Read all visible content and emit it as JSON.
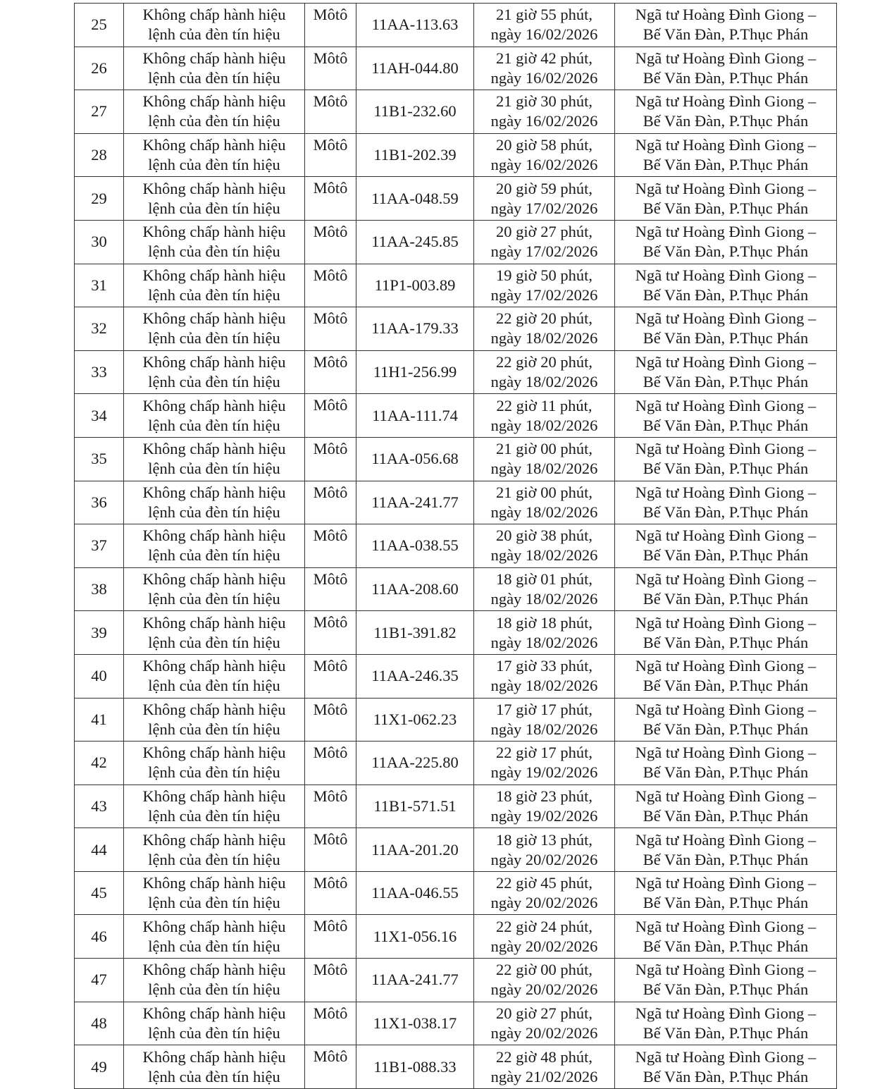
{
  "table": {
    "rows": [
      {
        "stt": "25",
        "violation": [
          "Không chấp hành hiệu",
          "lệnh của đèn tín hiệu"
        ],
        "type": "Môtô",
        "plate": "11AA-113.63",
        "time": [
          "21 giờ 55 phút,",
          "ngày 16/02/2026"
        ],
        "location": [
          "Ngã tư Hoàng Đình Giong –",
          "Bế Văn Đàn, P.Thục Phán"
        ]
      },
      {
        "stt": "26",
        "violation": [
          "Không chấp hành hiệu",
          "lệnh của đèn tín hiệu"
        ],
        "type": "Môtô",
        "plate": "11AH-044.80",
        "time": [
          "21 giờ 42 phút,",
          "ngày 16/02/2026"
        ],
        "location": [
          "Ngã tư Hoàng Đình Giong –",
          "Bế Văn Đàn, P.Thục Phán"
        ]
      },
      {
        "stt": "27",
        "violation": [
          "Không chấp hành hiệu",
          "lệnh của đèn tín hiệu"
        ],
        "type": "Môtô",
        "plate": "11B1-232.60",
        "time": [
          "21 giờ 30 phút,",
          "ngày 16/02/2026"
        ],
        "location": [
          "Ngã tư Hoàng Đình Giong –",
          "Bế Văn Đàn, P.Thục Phán"
        ]
      },
      {
        "stt": "28",
        "violation": [
          "Không chấp hành hiệu",
          "lệnh của đèn tín hiệu"
        ],
        "type": "Môtô",
        "plate": "11B1-202.39",
        "time": [
          "20 giờ 58 phút,",
          "ngày 16/02/2026"
        ],
        "location": [
          "Ngã tư Hoàng Đình Giong –",
          "Bế Văn Đàn, P.Thục Phán"
        ]
      },
      {
        "stt": "29",
        "violation": [
          "Không chấp hành hiệu",
          "lệnh của đèn tín hiệu"
        ],
        "type": "Môtô",
        "plate": "11AA-048.59",
        "time": [
          "20 giờ 59 phút,",
          "ngày 17/02/2026"
        ],
        "location": [
          "Ngã tư Hoàng Đình Giong –",
          "Bế Văn Đàn, P.Thục Phán"
        ]
      },
      {
        "stt": "30",
        "violation": [
          "Không chấp hành hiệu",
          "lệnh của đèn tín hiệu"
        ],
        "type": "Môtô",
        "plate": "11AA-245.85",
        "time": [
          "20 giờ 27 phút,",
          "ngày 17/02/2026"
        ],
        "location": [
          "Ngã tư Hoàng Đình Giong –",
          "Bế Văn Đàn, P.Thục Phán"
        ]
      },
      {
        "stt": "31",
        "violation": [
          "Không chấp hành hiệu",
          "lệnh của đèn tín hiệu"
        ],
        "type": "Môtô",
        "plate": "11P1-003.89",
        "time": [
          "19 giờ 50 phút,",
          "ngày 17/02/2026"
        ],
        "location": [
          "Ngã tư Hoàng Đình Giong –",
          "Bế Văn Đàn, P.Thục Phán"
        ]
      },
      {
        "stt": "32",
        "violation": [
          "Không chấp hành hiệu",
          "lệnh của đèn tín hiệu"
        ],
        "type": "Môtô",
        "plate": "11AA-179.33",
        "time": [
          "22 giờ 20 phút,",
          "ngày 18/02/2026"
        ],
        "location": [
          "Ngã tư Hoàng Đình Giong –",
          "Bế Văn Đàn, P.Thục Phán"
        ]
      },
      {
        "stt": "33",
        "violation": [
          "Không chấp hành hiệu",
          "lệnh của đèn tín hiệu"
        ],
        "type": "Môtô",
        "plate": "11H1-256.99",
        "time": [
          "22 giờ 20 phút,",
          "ngày 18/02/2026"
        ],
        "location": [
          "Ngã tư Hoàng Đình Giong –",
          "Bế Văn Đàn, P.Thục Phán"
        ]
      },
      {
        "stt": "34",
        "violation": [
          "Không chấp hành hiệu",
          "lệnh của đèn tín hiệu"
        ],
        "type": "Môtô",
        "plate": "11AA-111.74",
        "time": [
          "22 giờ 11 phút,",
          "ngày 18/02/2026"
        ],
        "location": [
          "Ngã tư Hoàng Đình Giong –",
          "Bế Văn Đàn, P.Thục Phán"
        ]
      },
      {
        "stt": "35",
        "violation": [
          "Không chấp hành hiệu",
          "lệnh của đèn tín hiệu"
        ],
        "type": "Môtô",
        "plate": "11AA-056.68",
        "time": [
          "21 giờ 00 phút,",
          "ngày 18/02/2026"
        ],
        "location": [
          "Ngã tư Hoàng Đình Giong –",
          "Bế Văn Đàn, P.Thục Phán"
        ]
      },
      {
        "stt": "36",
        "violation": [
          "Không chấp hành hiệu",
          "lệnh của đèn tín hiệu"
        ],
        "type": "Môtô",
        "plate": "11AA-241.77",
        "time": [
          "21 giờ 00 phút,",
          "ngày 18/02/2026"
        ],
        "location": [
          "Ngã tư Hoàng Đình Giong –",
          "Bế Văn Đàn, P.Thục Phán"
        ]
      },
      {
        "stt": "37",
        "violation": [
          "Không chấp hành hiệu",
          "lệnh của đèn tín hiệu"
        ],
        "type": "Môtô",
        "plate": "11AA-038.55",
        "time": [
          "20 giờ 38 phút,",
          "ngày 18/02/2026"
        ],
        "location": [
          "Ngã tư Hoàng Đình Giong –",
          "Bế Văn Đàn, P.Thục Phán"
        ]
      },
      {
        "stt": "38",
        "violation": [
          "Không chấp hành hiệu",
          "lệnh của đèn tín hiệu"
        ],
        "type": "Môtô",
        "plate": "11AA-208.60",
        "time": [
          "18 giờ 01 phút,",
          "ngày 18/02/2026"
        ],
        "location": [
          "Ngã tư Hoàng Đình Giong –",
          "Bế Văn Đàn, P.Thục Phán"
        ]
      },
      {
        "stt": "39",
        "violation": [
          "Không chấp hành hiệu",
          "lệnh của đèn tín hiệu"
        ],
        "type": "Môtô",
        "plate": "11B1-391.82",
        "time": [
          "18 giờ 18 phút,",
          "ngày 18/02/2026"
        ],
        "location": [
          "Ngã tư Hoàng Đình Giong –",
          "Bế Văn Đàn, P.Thục Phán"
        ]
      },
      {
        "stt": "40",
        "violation": [
          "Không chấp hành hiệu",
          "lệnh của đèn tín hiệu"
        ],
        "type": "Môtô",
        "plate": "11AA-246.35",
        "time": [
          "17 giờ 33 phút,",
          "ngày 18/02/2026"
        ],
        "location": [
          "Ngã tư Hoàng Đình Giong –",
          "Bế Văn Đàn, P.Thục Phán"
        ]
      },
      {
        "stt": "41",
        "violation": [
          "Không chấp hành hiệu",
          "lệnh của đèn tín hiệu"
        ],
        "type": "Môtô",
        "plate": "11X1-062.23",
        "time": [
          "17 giờ 17 phút,",
          "ngày 18/02/2026"
        ],
        "location": [
          "Ngã tư Hoàng Đình Giong –",
          "Bế Văn Đàn, P.Thục Phán"
        ]
      },
      {
        "stt": "42",
        "violation": [
          "Không chấp hành hiệu",
          "lệnh của đèn tín hiệu"
        ],
        "type": "Môtô",
        "plate": "11AA-225.80",
        "time": [
          "22 giờ 17 phút,",
          "ngày 19/02/2026"
        ],
        "location": [
          "Ngã tư Hoàng Đình Giong –",
          "Bế Văn Đàn, P.Thục Phán"
        ]
      },
      {
        "stt": "43",
        "violation": [
          "Không chấp hành hiệu",
          "lệnh của đèn tín hiệu"
        ],
        "type": "Môtô",
        "plate": "11B1-571.51",
        "time": [
          "18 giờ 23 phút,",
          "ngày 19/02/2026"
        ],
        "location": [
          "Ngã tư Hoàng Đình Giong –",
          "Bế Văn Đàn, P.Thục Phán"
        ]
      },
      {
        "stt": "44",
        "violation": [
          "Không chấp hành hiệu",
          "lệnh của đèn tín hiệu"
        ],
        "type": "Môtô",
        "plate": "11AA-201.20",
        "time": [
          "18 giờ 13 phút,",
          "ngày 20/02/2026"
        ],
        "location": [
          "Ngã tư Hoàng Đình Giong –",
          "Bế Văn Đàn, P.Thục Phán"
        ]
      },
      {
        "stt": "45",
        "violation": [
          "Không chấp hành hiệu",
          "lệnh của đèn tín hiệu"
        ],
        "type": "Môtô",
        "plate": "11AA-046.55",
        "time": [
          "22 giờ 45 phút,",
          "ngày 20/02/2026"
        ],
        "location": [
          "Ngã tư Hoàng Đình Giong –",
          "Bế Văn Đàn, P.Thục Phán"
        ]
      },
      {
        "stt": "46",
        "violation": [
          "Không chấp hành hiệu",
          "lệnh của đèn tín hiệu"
        ],
        "type": "Môtô",
        "plate": "11X1-056.16",
        "time": [
          "22 giờ 24 phút,",
          "ngày 20/02/2026"
        ],
        "location": [
          "Ngã tư Hoàng Đình Giong –",
          "Bế Văn Đàn, P.Thục Phán"
        ]
      },
      {
        "stt": "47",
        "violation": [
          "Không chấp hành hiệu",
          "lệnh của đèn tín hiệu"
        ],
        "type": "Môtô",
        "plate": "11AA-241.77",
        "time": [
          "22 giờ 00 phút,",
          "ngày 20/02/2026"
        ],
        "location": [
          "Ngã tư Hoàng Đình Giong –",
          "Bế Văn Đàn, P.Thục Phán"
        ]
      },
      {
        "stt": "48",
        "violation": [
          "Không chấp hành hiệu",
          "lệnh của đèn tín hiệu"
        ],
        "type": "Môtô",
        "plate": "11X1-038.17",
        "time": [
          "20 giờ 27 phút,",
          "ngày 20/02/2026"
        ],
        "location": [
          "Ngã tư Hoàng Đình Giong –",
          "Bế Văn Đàn, P.Thục Phán"
        ]
      },
      {
        "stt": "49",
        "violation": [
          "Không chấp hành hiệu",
          "lệnh của đèn tín hiệu"
        ],
        "type": "Môtô",
        "plate": "11B1-088.33",
        "time": [
          "22 giờ 48 phút,",
          "ngày 21/02/2026"
        ],
        "location": [
          "Ngã tư Hoàng Đình Giong –",
          "Bế Văn Đàn, P.Thục Phán"
        ]
      }
    ]
  }
}
